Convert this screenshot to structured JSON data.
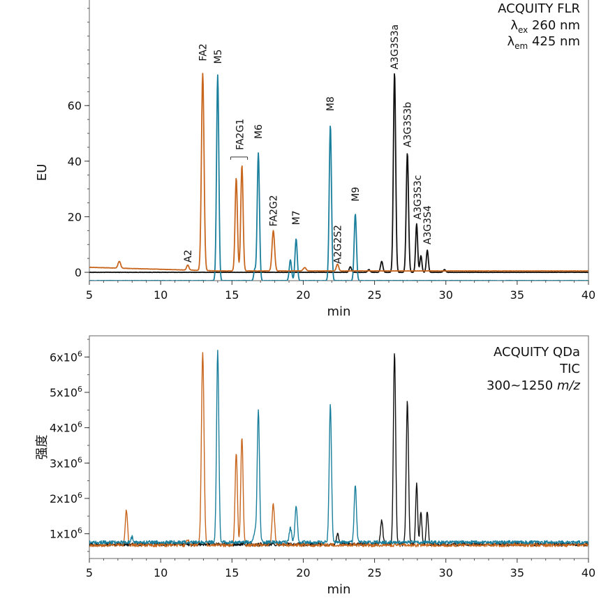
{
  "colors": {
    "orange": "#c8661e",
    "teal": "#1a7f9c",
    "black": "#111111"
  },
  "chart_data": [
    {
      "type": "line",
      "detector": "fluorescence",
      "title_lines": [
        "ACQUITY FLR"
      ],
      "ex_label": {
        "symbol": "λ",
        "sub": "ex",
        "value": "260 nm"
      },
      "em_label": {
        "symbol": "λ",
        "sub": "em",
        "value": "425 nm"
      },
      "xlabel": "min",
      "ylabel": "EU",
      "xlim": [
        5,
        40
      ],
      "ylim": [
        -3,
        98
      ],
      "x_ticks": [
        5,
        10,
        15,
        20,
        25,
        30,
        35,
        40
      ],
      "y_ticks": [
        0,
        20,
        40,
        60
      ],
      "y_tick_labels": [
        "0",
        "20",
        "40",
        "60"
      ],
      "baselines": {
        "orange": 0.5,
        "teal": -3,
        "black": 0
      },
      "series": [
        {
          "color": "orange",
          "peaks": [
            [
              7.1,
              2.5,
              0.09
            ],
            [
              11.9,
              1.8,
              0.08
            ],
            [
              12.95,
              71,
              0.09
            ],
            [
              15.3,
              33.5,
              0.08
            ],
            [
              15.7,
              38,
              0.08
            ],
            [
              17.9,
              14.5,
              0.09
            ],
            [
              20.1,
              1.2,
              0.1
            ],
            [
              22.4,
              2.5,
              0.08
            ]
          ]
        },
        {
          "color": "teal",
          "peaks": [
            [
              14.0,
              74,
              0.08
            ],
            [
              16.85,
              46,
              0.08
            ],
            [
              19.1,
              7.5,
              0.08
            ],
            [
              19.5,
              15,
              0.08
            ],
            [
              21.9,
              56,
              0.08
            ],
            [
              23.65,
              24,
              0.08
            ],
            [
              16.6,
              4,
              0.07
            ]
          ]
        },
        {
          "color": "black",
          "peaks": [
            [
              25.5,
              4,
              0.08
            ],
            [
              26.4,
              72,
              0.08
            ],
            [
              27.3,
              43,
              0.08
            ],
            [
              27.95,
              17.5,
              0.07
            ],
            [
              28.25,
              6,
              0.07
            ],
            [
              28.7,
              8,
              0.07
            ],
            [
              29.9,
              1,
              0.08
            ],
            [
              23.3,
              2,
              0.08
            ],
            [
              24.6,
              1,
              0.08
            ]
          ]
        }
      ],
      "peak_labels": [
        {
          "text": "A2",
          "x": 11.9,
          "y": 3.5
        },
        {
          "text": "FA2",
          "x": 12.95,
          "y": 76
        },
        {
          "text": "M5",
          "x": 14.0,
          "y": 75
        },
        {
          "text": "FA2G1",
          "x": 15.55,
          "y": 44
        },
        {
          "text": "M6",
          "x": 16.85,
          "y": 48
        },
        {
          "text": "FA2G2",
          "x": 17.9,
          "y": 16.5
        },
        {
          "text": "M7",
          "x": 19.5,
          "y": 17
        },
        {
          "text": "M8",
          "x": 21.9,
          "y": 58
        },
        {
          "text": "A2G2S2",
          "x": 22.4,
          "y": 3
        },
        {
          "text": "M9",
          "x": 23.65,
          "y": 25.5
        },
        {
          "text": "A3G3S3a",
          "x": 26.4,
          "y": 73
        },
        {
          "text": "A3G3S3b",
          "x": 27.3,
          "y": 45
        },
        {
          "text": "A3G3S3c",
          "x": 28.0,
          "y": 19
        },
        {
          "text": "A3G3S4",
          "x": 28.7,
          "y": 10
        }
      ]
    },
    {
      "type": "line",
      "detector": "mass",
      "title_lines": [
        "ACQUITY QDa",
        "TIC"
      ],
      "range_label": {
        "prefix": "300~1250 ",
        "unit": "m/z"
      },
      "xlabel": "min",
      "ylabel": "强度",
      "xlim": [
        5,
        40
      ],
      "ylim": [
        300000,
        6600000
      ],
      "x_ticks": [
        5,
        10,
        15,
        20,
        25,
        30,
        35,
        40
      ],
      "y_ticks": [
        1000000,
        2000000,
        3000000,
        4000000,
        5000000,
        6000000
      ],
      "y_tick_labels": [
        {
          "base": "1x10",
          "exp": "6"
        },
        {
          "base": "2x10",
          "exp": "6"
        },
        {
          "base": "3x10",
          "exp": "6"
        },
        {
          "base": "4x10",
          "exp": "6"
        },
        {
          "base": "5x10",
          "exp": "6"
        },
        {
          "base": "6x10",
          "exp": "6"
        }
      ],
      "baselines": {
        "orange": 680000,
        "teal": 760000,
        "black": 700000
      },
      "series": [
        {
          "color": "orange",
          "peaks": [
            [
              7.6,
              1000000,
              0.08
            ],
            [
              11.9,
              150000,
              0.08
            ],
            [
              12.95,
              5450000,
              0.09
            ],
            [
              15.3,
              2600000,
              0.08
            ],
            [
              15.7,
              3050000,
              0.08
            ],
            [
              17.9,
              1150000,
              0.09
            ]
          ]
        },
        {
          "color": "teal",
          "peaks": [
            [
              8.0,
              150000,
              0.07
            ],
            [
              14.0,
              5400000,
              0.08
            ],
            [
              16.85,
              3750000,
              0.08
            ],
            [
              16.6,
              300000,
              0.07
            ],
            [
              19.1,
              400000,
              0.08
            ],
            [
              19.5,
              1050000,
              0.08
            ],
            [
              21.9,
              3900000,
              0.08
            ],
            [
              23.65,
              1600000,
              0.08
            ]
          ]
        },
        {
          "color": "black",
          "peaks": [
            [
              22.4,
              300000,
              0.08
            ],
            [
              25.5,
              700000,
              0.08
            ],
            [
              26.4,
              5450000,
              0.08
            ],
            [
              27.3,
              4050000,
              0.08
            ],
            [
              27.95,
              1700000,
              0.07
            ],
            [
              28.25,
              900000,
              0.07
            ],
            [
              28.7,
              950000,
              0.07
            ]
          ]
        }
      ]
    }
  ]
}
